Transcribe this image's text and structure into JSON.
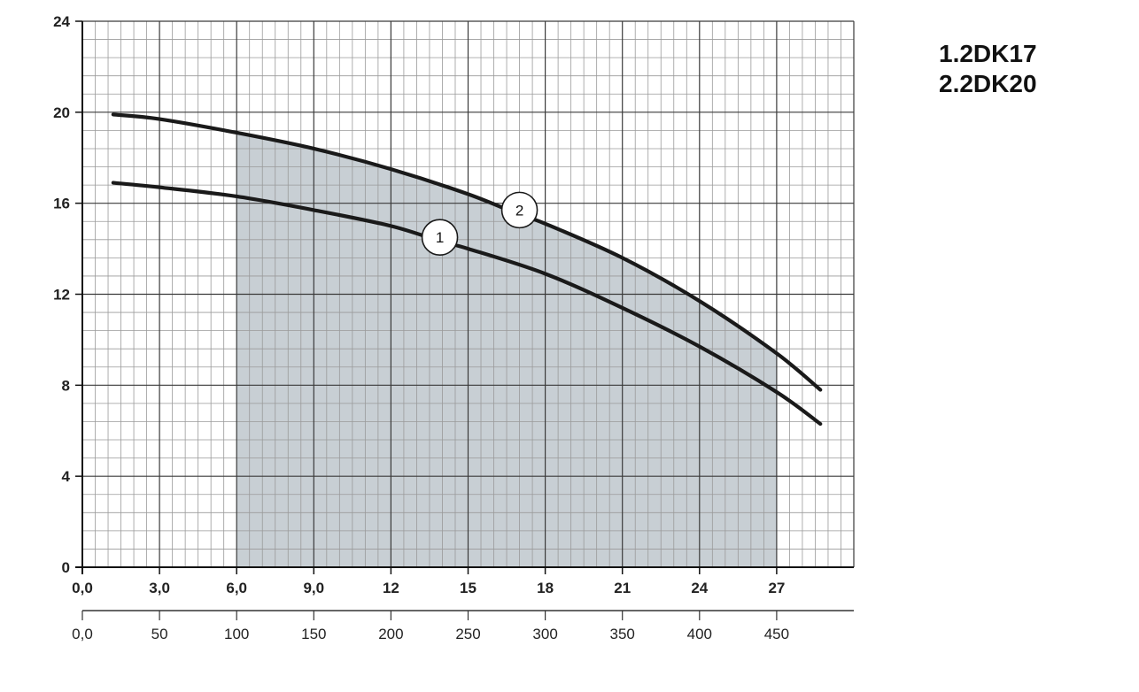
{
  "legend": {
    "line1": "1.2DK17",
    "line2": "2.2DK20"
  },
  "chart_data": {
    "type": "line",
    "title": "",
    "xlabel": "",
    "ylabel": "",
    "xlim": [
      0,
      30
    ],
    "ylim": [
      0,
      24
    ],
    "y_ticks": [
      "0",
      "4",
      "8",
      "12",
      "16",
      "20",
      "24"
    ],
    "x_ticks_primary": [
      "0,0",
      "3,0",
      "6,0",
      "9,0",
      "12",
      "15",
      "18",
      "21",
      "24",
      "27"
    ],
    "x_ticks_secondary": [
      "0,0",
      "50",
      "100",
      "150",
      "200",
      "250",
      "300",
      "350",
      "400",
      "450"
    ],
    "grid": true,
    "operating_range": {
      "x_from": 6.0,
      "x_to": 27.0
    },
    "series": [
      {
        "name": "1",
        "x": [
          1.2,
          3,
          6,
          9,
          12,
          14,
          15,
          18,
          21,
          24,
          27,
          28.7
        ],
        "y": [
          16.9,
          16.7,
          16.3,
          15.7,
          15.0,
          14.3,
          14.0,
          12.9,
          11.4,
          9.7,
          7.7,
          6.3
        ]
      },
      {
        "name": "2",
        "x": [
          1.2,
          3,
          6,
          9,
          12,
          15,
          17,
          18,
          21,
          24,
          27,
          28.7
        ],
        "y": [
          19.9,
          19.7,
          19.1,
          18.4,
          17.5,
          16.4,
          15.5,
          15.1,
          13.6,
          11.7,
          9.4,
          7.8
        ]
      }
    ],
    "curve_labels": [
      {
        "text": "1",
        "x": 13.9,
        "y": 14.5
      },
      {
        "text": "2",
        "x": 17.0,
        "y": 15.7
      }
    ]
  }
}
